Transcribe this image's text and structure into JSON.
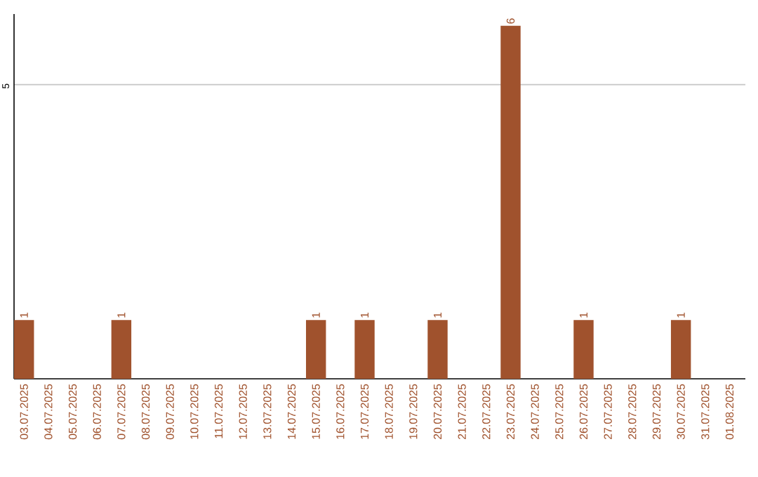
{
  "chart_data": {
    "type": "bar",
    "categories": [
      "03.07.2025",
      "04.07.2025",
      "05.07.2025",
      "06.07.2025",
      "07.07.2025",
      "08.07.2025",
      "09.07.2025",
      "10.07.2025",
      "11.07.2025",
      "12.07.2025",
      "13.07.2025",
      "14.07.2025",
      "15.07.2025",
      "16.07.2025",
      "17.07.2025",
      "18.07.2025",
      "19.07.2025",
      "20.07.2025",
      "21.07.2025",
      "22.07.2025",
      "23.07.2025",
      "24.07.2025",
      "25.07.2025",
      "26.07.2025",
      "27.07.2025",
      "28.07.2025",
      "29.07.2025",
      "30.07.2025",
      "31.07.2025",
      "01.08.2025"
    ],
    "values": [
      1,
      0,
      0,
      0,
      1,
      0,
      0,
      0,
      0,
      0,
      0,
      0,
      1,
      0,
      1,
      0,
      0,
      1,
      0,
      0,
      6,
      0,
      0,
      1,
      0,
      0,
      0,
      1,
      0,
      0
    ],
    "value_labels": [
      "1",
      null,
      null,
      null,
      "1",
      null,
      null,
      null,
      null,
      null,
      null,
      null,
      "1",
      null,
      "1",
      null,
      null,
      "1",
      null,
      null,
      "6",
      null,
      null,
      "1",
      null,
      null,
      null,
      "1",
      null,
      null
    ],
    "color": "#a0522d",
    "ylim": [
      0,
      6.2
    ],
    "yticks": [
      5
    ],
    "grid": "y"
  }
}
